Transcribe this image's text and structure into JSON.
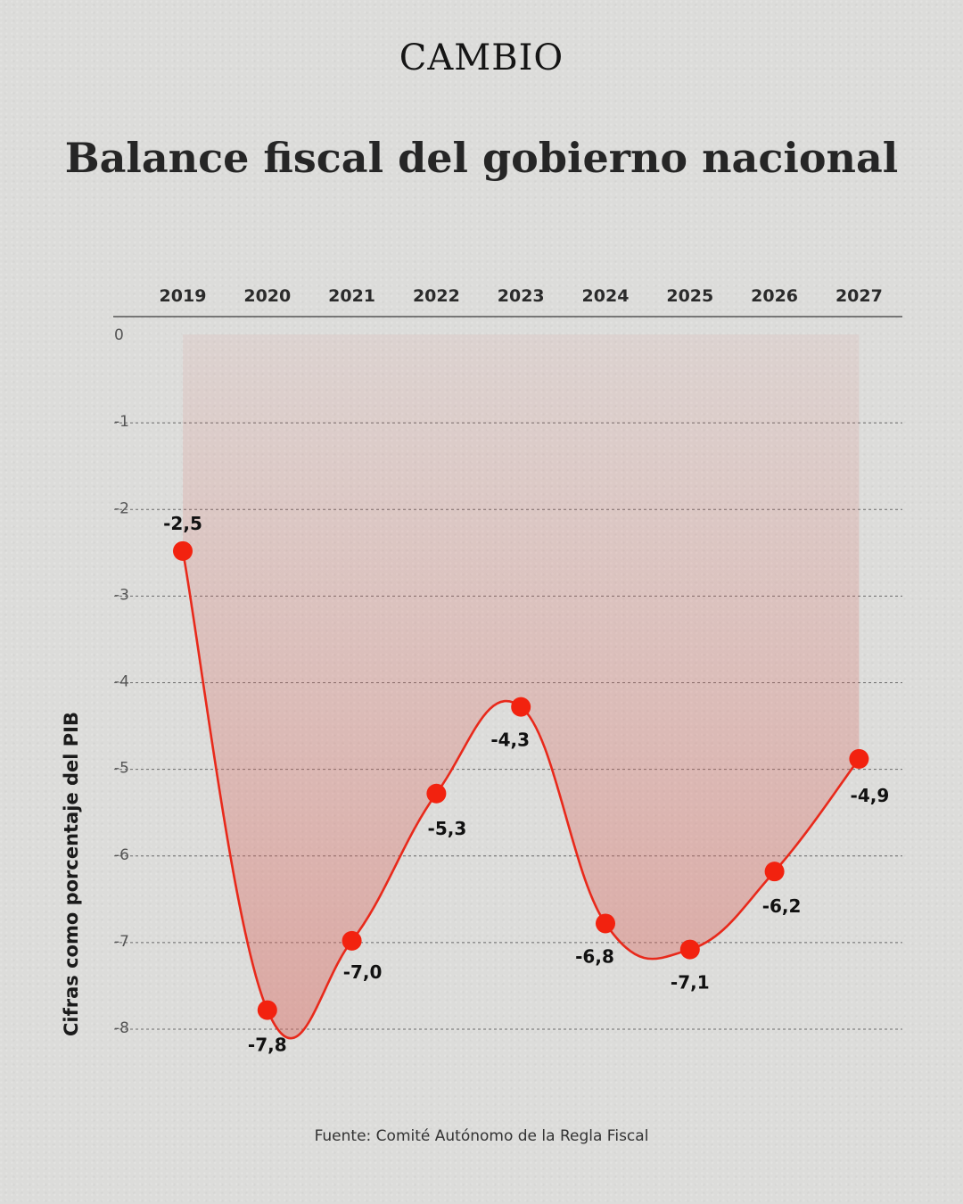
{
  "header": {
    "logo": "CAMBIO"
  },
  "title": "Balance fiscal del gobierno nacional",
  "source": "Fuente: Comité Autónomo de la Regla Fiscal",
  "colors": {
    "line": "#e8291b",
    "point": "#f2220f",
    "area": "#d9675e"
  },
  "chart_data": {
    "type": "line",
    "title": "Balance fiscal del gobierno nacional",
    "xlabel": "",
    "ylabel": "Cifras como porcentaje del PIB",
    "categories": [
      "2019",
      "2020",
      "2021",
      "2022",
      "2023",
      "2024",
      "2025",
      "2026",
      "2027"
    ],
    "values": [
      -2.5,
      -7.8,
      -7.0,
      -5.3,
      -4.3,
      -6.8,
      -7.1,
      -6.2,
      -4.9
    ],
    "value_labels": [
      "-2,5",
      "-7,8",
      "-7,0",
      "-5,3",
      "-4,3",
      "-6,8",
      "-7,1",
      "-6,2",
      "-4,9"
    ],
    "yticks": [
      0,
      -1,
      -2,
      -3,
      -4,
      -5,
      -6,
      -7,
      -8
    ],
    "ytick_labels": [
      "0",
      "-1",
      "-2",
      "-3",
      "-4",
      "-5",
      "-6",
      "-7",
      "-8"
    ],
    "ylim": [
      -8,
      0
    ],
    "x_axis_position": "top",
    "grid": true
  }
}
